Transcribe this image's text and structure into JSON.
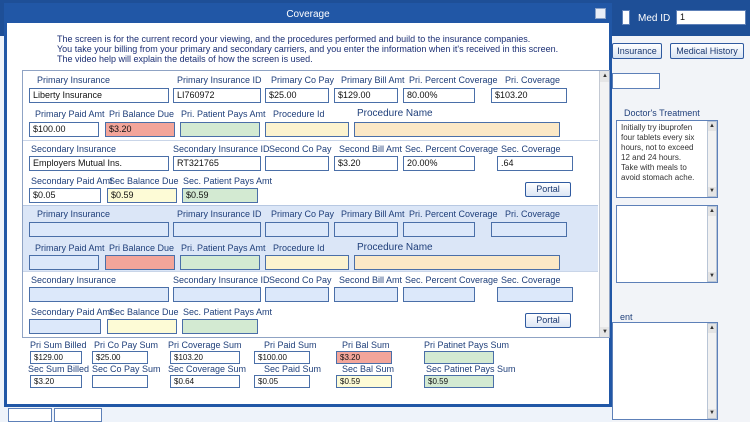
{
  "background": {
    "med_id_label": "Med ID",
    "med_id_value": "1",
    "insurance_button": "Insurance",
    "medical_history_button": "Medical History",
    "doctors_treatment_label": "Doctor's Treatment",
    "doctors_treatment_text": [
      "Initially try ibuprofen",
      "four tablets every six",
      "hours, not to exceed",
      "12 and 24 hours.",
      "Take with meals to",
      "avoid stomach ache."
    ],
    "partial_label": "ent"
  },
  "dialog": {
    "title": "Coverage",
    "intro": [
      "The screen is for the current record your viewing, and the procedures performed and build to the insurance companies.",
      "You take your billing from your primary and secondary carriers, and you enter the information when it's received in this screen.",
      "The video help will explain the details of how the screen is used."
    ]
  },
  "labels": {
    "primary_insurance": "Primary Insurance",
    "primary_insurance_id": "Primary Insurance ID",
    "primary_co_pay": "Primary Co Pay",
    "primary_bill_amt": "Primary Bill Amt",
    "pri_percent_coverage": "Pri. Percent Coverage",
    "pri_coverage": "Pri. Coverage",
    "primary_paid_amt": "Primary Paid Amt",
    "pri_balance_due": "Pri Balance Due",
    "pri_patient_pays_amt": "Pri. Patient Pays Amt",
    "procedure_id": "Procedure Id",
    "procedure_name": "Procedure Name",
    "secondary_insurance": "Secondary Insurance",
    "secondary_insurance_id": "Secondary Insurance ID",
    "second_co_pay": "Second Co Pay",
    "second_bill_amt": "Second Bill Amt",
    "sec_percent_coverage": "Sec. Percent Coverage",
    "sec_coverage": "Sec. Coverage",
    "secondary_paid_amt": "Secondary Paid Amt",
    "sec_balance_due": "Sec Balance Due",
    "sec_patient_pays_amt": "Sec. Patient Pays Amt",
    "portal": "Portal"
  },
  "record1": {
    "primary_insurance": "Liberty Insurance",
    "primary_insurance_id": "LI760972",
    "primary_co_pay": "$25.00",
    "primary_bill_amt": "$129.00",
    "pri_percent_coverage": "80.00%",
    "pri_coverage": "$103.20",
    "primary_paid_amt": "$100.00",
    "pri_balance_due": "$3.20",
    "pri_patient_pays_amt": "",
    "procedure_id": "",
    "procedure_name": "",
    "secondary_insurance": "Employers Mutual Ins.",
    "secondary_insurance_id": "RT321765",
    "second_co_pay": "",
    "second_bill_amt": "$3.20",
    "sec_percent_coverage": "20.00%",
    "sec_coverage": ".64",
    "secondary_paid_amt": "$0.05",
    "sec_balance_due": "$0.59",
    "sec_patient_pays_amt": "$0.59"
  },
  "sums": {
    "labels": {
      "pri_sum_billed": "Pri Sum Billed",
      "pri_co_pay_sum": "Pri Co Pay Sum",
      "pri_coverage_sum": "Pri Coverage Sum",
      "pri_paid_sum": "Pri Paid Sum",
      "pri_bal_sum": "Pri Bal Sum",
      "pri_patinet_pays_sum": "Pri Patinet Pays Sum",
      "sec_sum_billed": "Sec Sum Billed",
      "sec_co_pay_sum": "Sec Co Pay Sum",
      "sec_coverage_sum": "Sec Coverage Sum",
      "sec_paid_sum": "Sec Paid Sum",
      "sec_bal_sum": "Sec Bal Sum",
      "sec_patinet_pays_sum": "Sec Patinet Pays Sum"
    },
    "values": {
      "pri_sum_billed": "$129.00",
      "pri_co_pay_sum": "$25.00",
      "pri_coverage_sum": "$103.20",
      "pri_paid_sum": "$100.00",
      "pri_bal_sum": "$3.20",
      "pri_patinet_pays_sum": "",
      "sec_sum_billed": "$3.20",
      "sec_co_pay_sum": "",
      "sec_coverage_sum": "$0.64",
      "sec_paid_sum": "$0.05",
      "sec_bal_sum": "$0.59",
      "sec_patinet_pays_sum": "$0.59"
    }
  },
  "colors": {
    "title_bar": "#2157a6",
    "balance_due": "#f3a59a",
    "patient_pays": "#d3ead2",
    "row_alt": "#dbe6f7"
  }
}
